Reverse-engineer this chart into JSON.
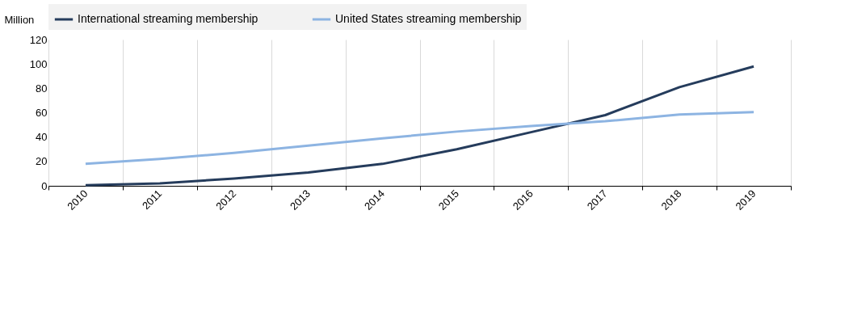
{
  "chart_data": {
    "type": "line",
    "ylabel": "Million",
    "categories": [
      "2010",
      "2011",
      "2012",
      "2013",
      "2014",
      "2015",
      "2016",
      "2017",
      "2018",
      "2019"
    ],
    "series": [
      {
        "name": "International streaming membership",
        "color": "#253c5c",
        "values": [
          0.5,
          2,
          6,
          11,
          18,
          30,
          44,
          58,
          81,
          98
        ]
      },
      {
        "name": "United States streaming membership",
        "color": "#8db4e2",
        "values": [
          18,
          22,
          27,
          33,
          39,
          44.5,
          49,
          53,
          58.5,
          60.5
        ]
      }
    ],
    "ylim": [
      0,
      120
    ],
    "yticks": [
      0,
      20,
      40,
      60,
      80,
      100,
      120
    ],
    "grid": "x",
    "legend": "top",
    "marker": "none",
    "line_style": "solid"
  }
}
